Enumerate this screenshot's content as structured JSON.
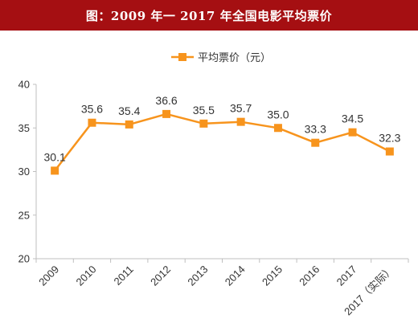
{
  "header": {
    "title": "图：2009 年一 2017 年全国电影平均票价"
  },
  "chart_data": {
    "type": "line",
    "title": "图：2009 年一 2017 年全国电影平均票价",
    "categories": [
      "2009",
      "2010",
      "2011",
      "2012",
      "2013",
      "2014",
      "2015",
      "2016",
      "2017",
      "2017（实际）"
    ],
    "series": [
      {
        "name": "平均票价（元）",
        "values": [
          30.1,
          35.6,
          35.4,
          36.6,
          35.5,
          35.7,
          35.0,
          33.3,
          34.5,
          32.3
        ],
        "data_labels": [
          "30.1",
          "35.6",
          "35.4",
          "36.6",
          "35.5",
          "35.7",
          "35.0",
          "33.3",
          "34.5",
          "32.3"
        ],
        "color": "#f7941d"
      }
    ],
    "yticks": [
      "20",
      "25",
      "30",
      "35",
      "40"
    ],
    "ylim": [
      20,
      40
    ],
    "grid": false,
    "legend": "top-center",
    "xlabel": "",
    "ylabel": ""
  },
  "colors": {
    "title_bg": "#a50f12",
    "title_text": "#ffffff",
    "series": "#f7941d",
    "axis": "#bfbfbf",
    "text": "#333333"
  }
}
